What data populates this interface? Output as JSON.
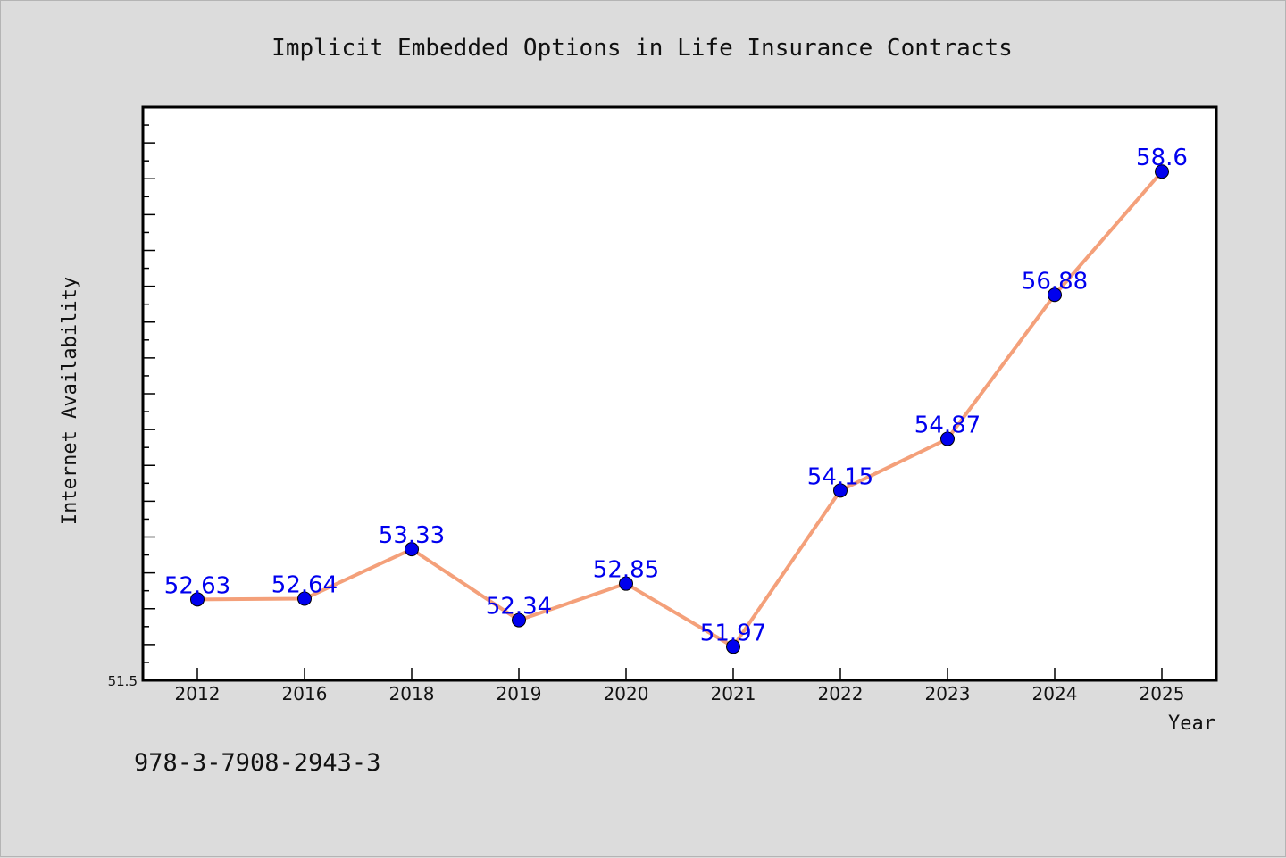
{
  "chart_data": {
    "type": "line",
    "title": "Implicit Embedded Options in Life Insurance Contracts",
    "xlabel": "Year",
    "ylabel": "Internet Availability",
    "categories": [
      "2012",
      "2016",
      "2018",
      "2019",
      "2020",
      "2021",
      "2022",
      "2023",
      "2024",
      "2025"
    ],
    "series": [
      {
        "values": [
          52.63,
          52.64,
          53.33,
          52.34,
          52.85,
          51.97,
          54.15,
          54.87,
          56.88,
          58.6
        ]
      }
    ],
    "data_labels": [
      "52.63",
      "52.64",
      "53.33",
      "52.34",
      "52.85",
      "51.97",
      "54.15",
      "54.87",
      "56.88",
      "58.6"
    ],
    "ylim": [
      51.5,
      59.5
    ],
    "ytick_labels": [
      "51.5"
    ],
    "grid": false,
    "legend": "none",
    "colors": {
      "line": "#f4a07a",
      "marker": "#0000ee",
      "label": "#0000ee",
      "background": "#dcdcdc",
      "plot_area": "#ffffff"
    }
  },
  "footer": {
    "isbn": "978-3-7908-2943-3"
  }
}
